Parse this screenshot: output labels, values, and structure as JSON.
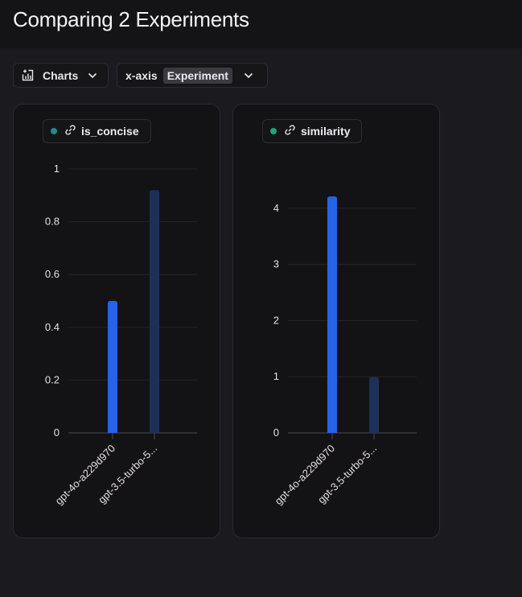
{
  "header": {
    "title": "Comparing 2 Experiments"
  },
  "toolbar": {
    "charts_label": "Charts",
    "xaxis_label": "x-axis",
    "xaxis_value": "Experiment"
  },
  "colors": {
    "bar_primary": "#2563eb",
    "bar_secondary": "#1e2f5a"
  },
  "chart_data": [
    {
      "type": "bar",
      "title": "is_concise",
      "legend_color": "#1f8a8a",
      "categories": [
        "gpt-4o-a229d970",
        "gpt-3.5-turbo-5..."
      ],
      "values": [
        0.5,
        0.92
      ],
      "ylim": [
        0,
        1
      ],
      "yticks": [
        "0",
        "0.2",
        "0.4",
        "0.6",
        "0.8",
        "1"
      ],
      "ytick_values": [
        0,
        0.2,
        0.4,
        0.6,
        0.8,
        1
      ],
      "grid": true
    },
    {
      "type": "bar",
      "title": "similarity",
      "legend_color": "#22a578",
      "categories": [
        "gpt-4o-a229d970",
        "gpt-3.5-turbo-5..."
      ],
      "values": [
        4.21,
        0.99
      ],
      "ylim": [
        0,
        5
      ],
      "yticks": [
        "0",
        "1",
        "2",
        "3",
        "4"
      ],
      "ytick_values": [
        0,
        1,
        2,
        3,
        4
      ],
      "grid": true
    }
  ]
}
